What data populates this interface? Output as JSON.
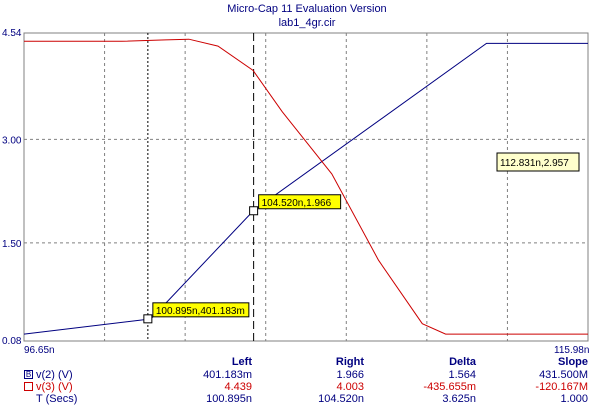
{
  "window": {
    "title": "Micro-Cap 11 Evaluation Version",
    "file": "lab1_4gr.cir"
  },
  "chart_data": {
    "type": "line",
    "xlim": [
      96.65,
      115.98
    ],
    "ylim": [
      0.08,
      4.54
    ],
    "x_unit": "n",
    "y_tick_labels": [
      "4.54",
      "3.00",
      "1.50",
      "0.08"
    ],
    "y_ticks": [
      4.54,
      3.0,
      1.5,
      0.08
    ],
    "x_tick_labels": [
      "96.65n",
      "115.98n"
    ],
    "grid": true,
    "series": [
      {
        "name": "v(2) (V)",
        "color": "#000080",
        "x": [
          96.65,
          101.0,
          104.52,
          112.5,
          115.98
        ],
        "y": [
          0.18,
          0.4,
          1.97,
          4.39,
          4.39
        ]
      },
      {
        "name": "v(3) (V)",
        "color": "#cc0000",
        "x": [
          96.65,
          100.0,
          101.5,
          102.3,
          103.3,
          104.5,
          105.5,
          107.2,
          108.8,
          110.3,
          111.1,
          115.98
        ],
        "y": [
          4.42,
          4.42,
          4.44,
          4.45,
          4.35,
          4.0,
          3.4,
          2.5,
          1.25,
          0.33,
          0.18,
          0.18
        ]
      }
    ],
    "cursors": [
      {
        "x": 100.895,
        "style": "dotted"
      },
      {
        "x": 104.52,
        "style": "dashed"
      }
    ],
    "annotations": [
      {
        "label": "100.895n,401.183m",
        "x": 100.895,
        "y": 0.401
      },
      {
        "label": "104.520n,1.966",
        "x": 104.52,
        "y": 1.966
      },
      {
        "label": "112.831n,2.957",
        "x": 112.831,
        "y": 2.957
      }
    ]
  },
  "table": {
    "headers": {
      "left": "Left",
      "right": "Right",
      "delta": "Delta",
      "slope": "Slope"
    },
    "rows": [
      {
        "label": "v(2) (V)",
        "marker": "B",
        "color": "#000080",
        "left": "401.183m",
        "right": "1.966",
        "delta": "1.564",
        "slope": "431.500M"
      },
      {
        "label": "v(3) (V)",
        "marker": "",
        "color": "#cc0000",
        "left": "4.439",
        "right": "4.003",
        "delta": "-435.655m",
        "slope": "-120.167M"
      },
      {
        "label": "T (Secs)",
        "marker": "",
        "color": "",
        "left": "100.895n",
        "right": "104.520n",
        "delta": "3.625n",
        "slope": "1.000"
      }
    ]
  }
}
